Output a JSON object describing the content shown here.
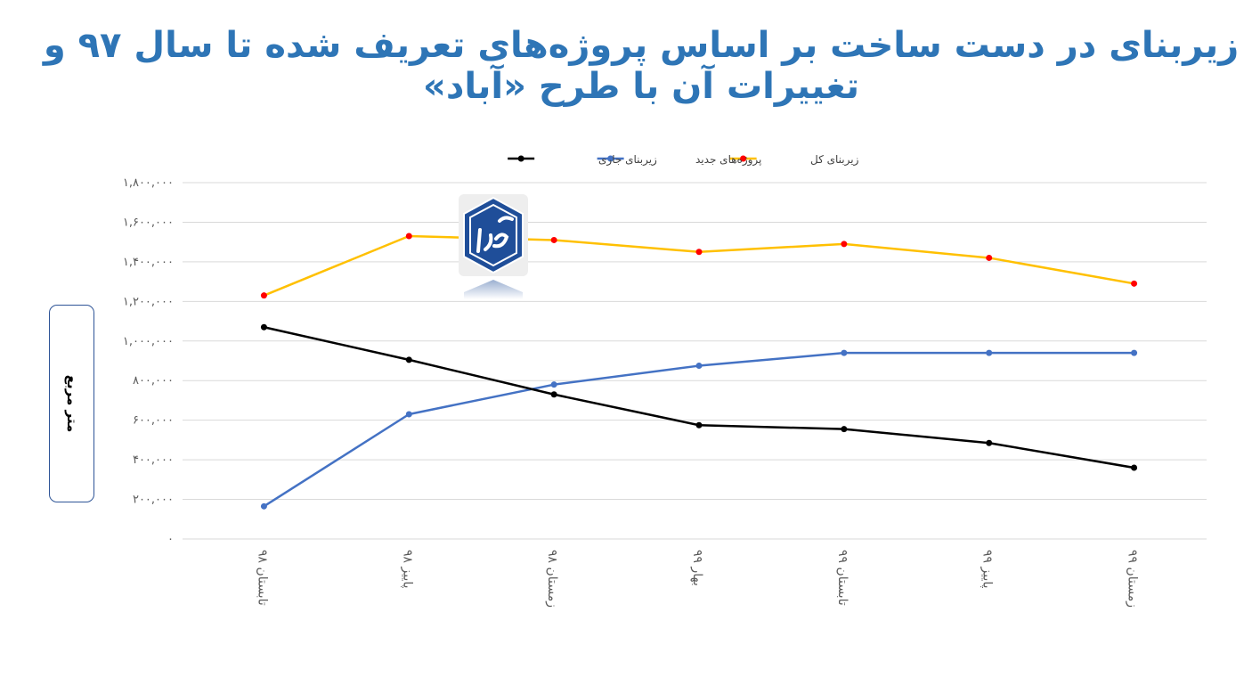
{
  "title": {
    "line1": "زیربنای در دست ساخت بر اساس پروژه‌های تعریف شده تا سال ۹۷ و",
    "line2": "تغییرات آن با طرح «آباد»"
  },
  "logo": {
    "text": "طرح آباد",
    "color": "#1f4e99"
  },
  "chart_data": {
    "type": "line",
    "title": "زیربنای در دست ساخت بر اساس پروژه‌های تعریف شده تا سال ۹۷ و تغییرات آن با طرح «آباد»",
    "ylabel": "متر مربع",
    "xlabel": "",
    "ylim": [
      0,
      1800000
    ],
    "yticks": [
      0,
      200000,
      400000,
      600000,
      800000,
      1000000,
      1200000,
      1400000,
      1600000,
      1800000
    ],
    "ytick_labels": [
      "۰",
      "۲۰۰,۰۰۰",
      "۴۰۰,۰۰۰",
      "۶۰۰,۰۰۰",
      "۸۰۰,۰۰۰",
      "۱,۰۰۰,۰۰۰",
      "۱,۲۰۰,۰۰۰",
      "۱,۴۰۰,۰۰۰",
      "۱,۶۰۰,۰۰۰",
      "۱,۸۰۰,۰۰۰"
    ],
    "grid": true,
    "legend_position": "top",
    "categories": [
      "تابستان ۹۸",
      "پاییز ۹۸",
      "زمستان ۹۸",
      "بهار ۹۹",
      "تابستان ۹۹",
      "پاییز ۹۹",
      "زمستان ۹۹"
    ],
    "series": [
      {
        "name": "زیربنای کل",
        "color": "#ffc000",
        "marker_color": "#ff0000",
        "values": [
          1230000,
          1530000,
          1510000,
          1450000,
          1490000,
          1420000,
          1290000
        ]
      },
      {
        "name": "پروژه‌های جدید",
        "color": "#4472c4",
        "marker_color": "#4472c4",
        "values": [
          165000,
          630000,
          780000,
          875000,
          940000,
          940000,
          940000
        ]
      },
      {
        "name": "زیربنای جاری",
        "color": "#000000",
        "marker_color": "#000000",
        "values": [
          1070000,
          905000,
          730000,
          575000,
          555000,
          485000,
          360000
        ]
      }
    ]
  }
}
